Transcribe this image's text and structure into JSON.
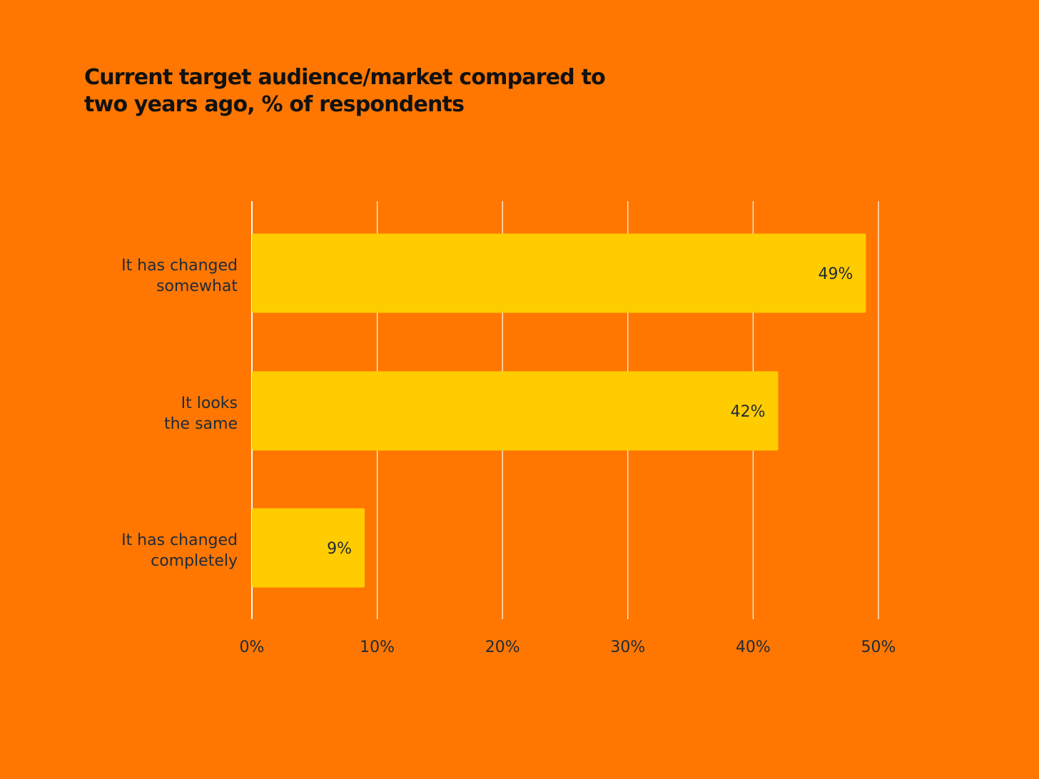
{
  "chart_data": {
    "type": "bar",
    "orientation": "horizontal",
    "title_lines": [
      "Current target audience/market compared to",
      "two years ago, % of respondents"
    ],
    "categories": [
      [
        "It has changed",
        "somewhat"
      ],
      [
        "It looks",
        "the same"
      ],
      [
        "It has changed",
        "completely"
      ]
    ],
    "values": [
      49,
      42,
      9
    ],
    "data_labels": [
      "49%",
      "42%",
      "9%"
    ],
    "xlim": [
      0,
      50
    ],
    "xticks": [
      0,
      10,
      20,
      30,
      40,
      50
    ],
    "xtick_labels": [
      "0%",
      "10%",
      "20%",
      "30%",
      "40%",
      "50%"
    ],
    "xlabel": "",
    "ylabel": "",
    "grid": true,
    "colors": {
      "background": "#FF7700",
      "bar": "#FFCC00",
      "gridline": "#FFFFFF",
      "text": "#1f2a3a",
      "title": "#111111"
    }
  }
}
